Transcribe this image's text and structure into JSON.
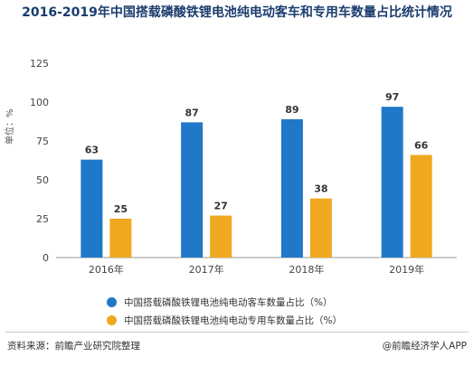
{
  "chart_data": {
    "type": "bar",
    "title": "2016-2019年中国搭载磷酸铁锂电池纯电动客车和专用车数量占比统计情况",
    "ylabel": "单位：%",
    "categories": [
      "2016年",
      "2017年",
      "2018年",
      "2019年"
    ],
    "series": [
      {
        "name": "中国搭载磷酸铁锂电池纯电动客车数量占比（%）",
        "values": [
          63,
          87,
          89,
          97
        ],
        "color": "#1f78c8"
      },
      {
        "name": "中国搭载磷酸铁锂电池纯电动专用车数量占比（%）",
        "values": [
          25,
          27,
          38,
          66
        ],
        "color": "#f0a81e"
      }
    ],
    "yticks": [
      0,
      25,
      50,
      75,
      100,
      125
    ],
    "ylim": [
      0,
      125
    ],
    "legend_position": "bottom",
    "grid": false
  },
  "footer": {
    "source": "资料来源：前瞻产业研究院整理",
    "brand": "@前瞻经济学人APP"
  }
}
